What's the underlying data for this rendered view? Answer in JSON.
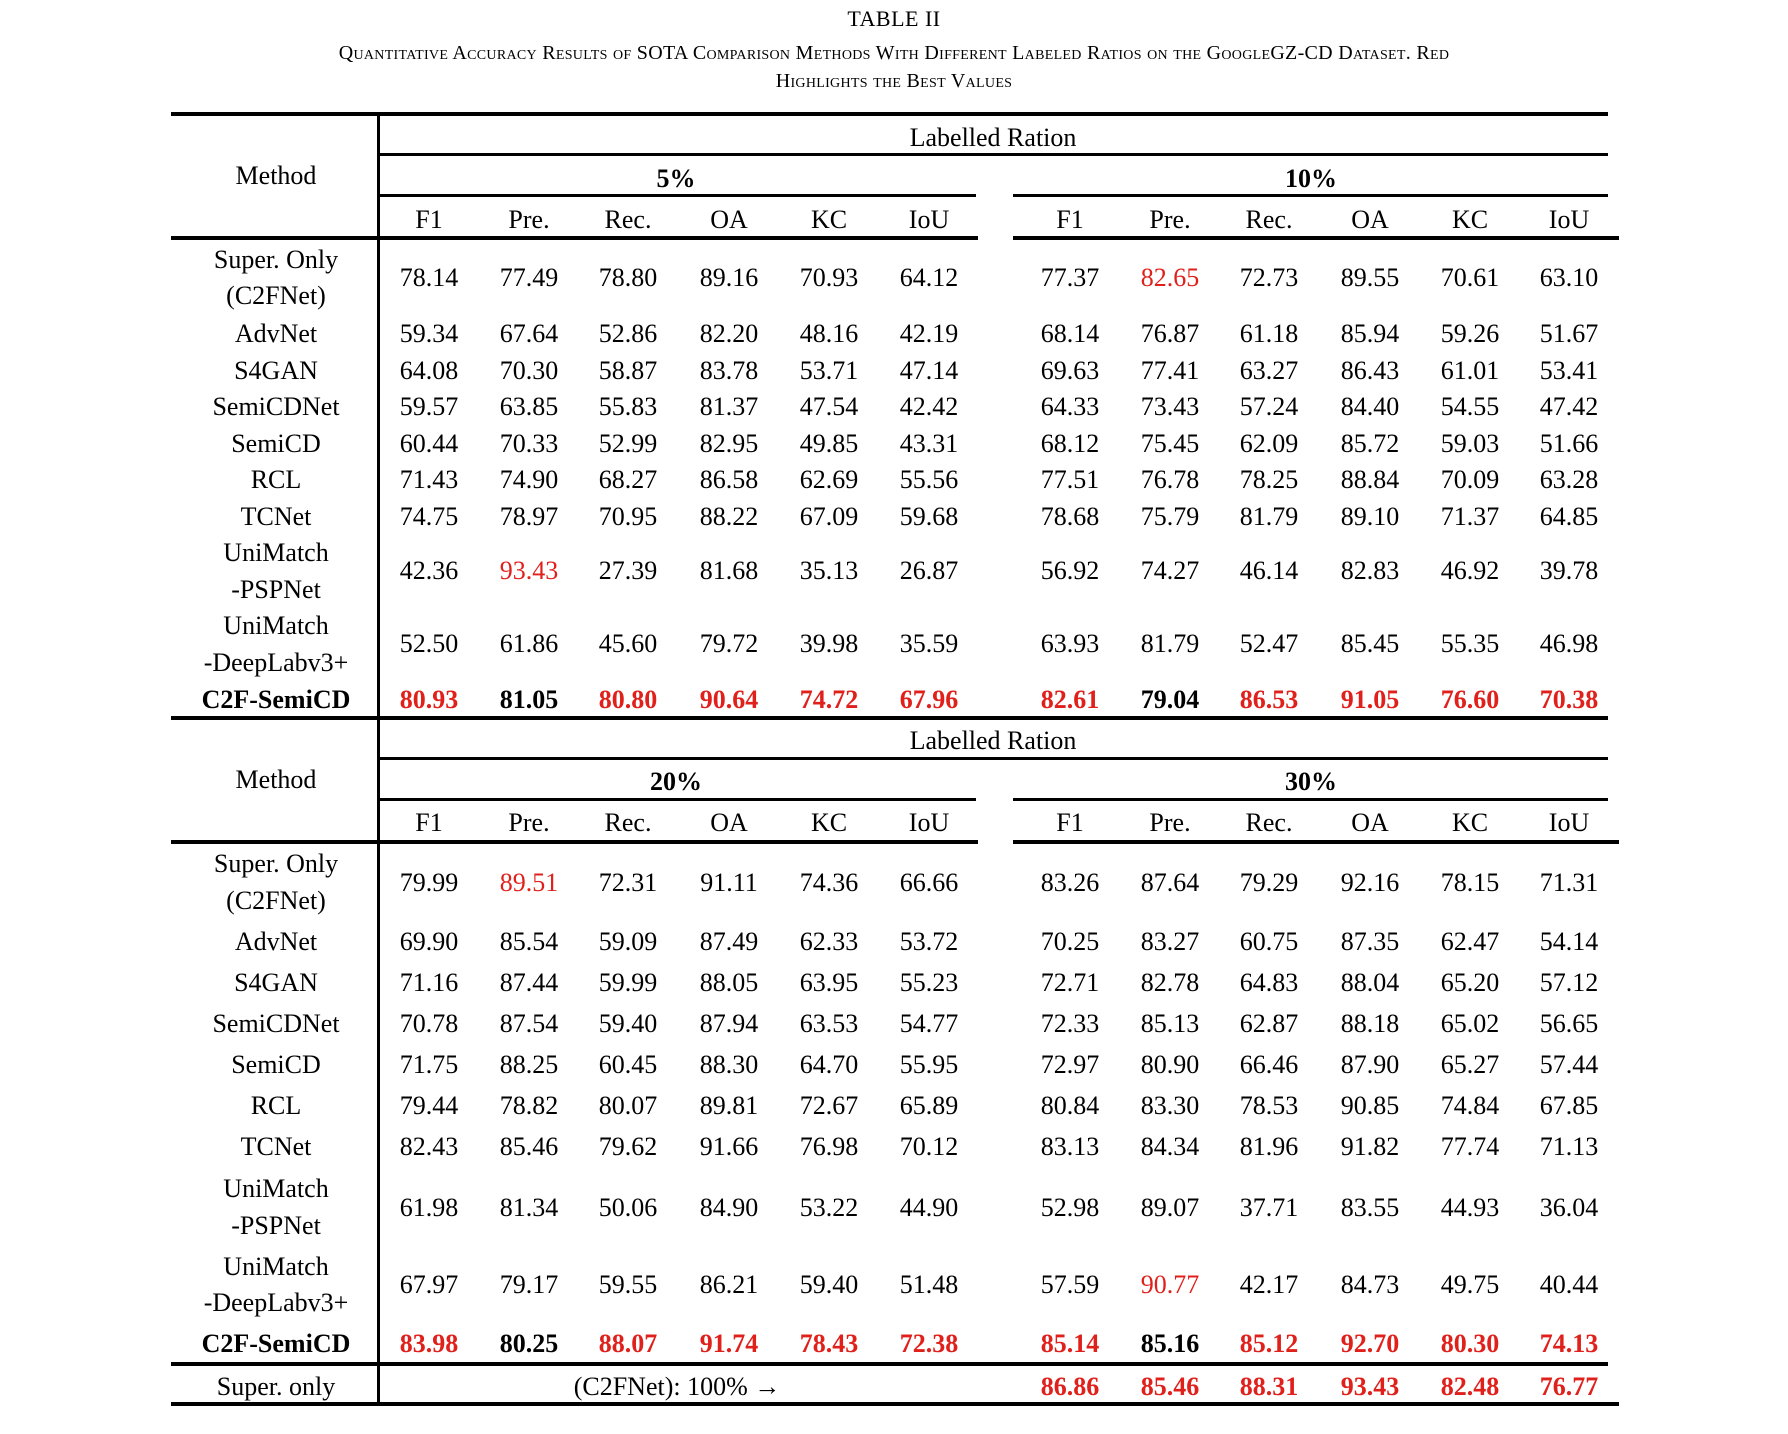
{
  "table_label": "TABLE II",
  "caption_line1": "Quantitative Accuracy Results of SOTA Comparison Methods With Different Labeled Ratios on the GoogleGZ-CD Dataset. Red",
  "caption_line2": "Highlights the Best Values",
  "colors": {
    "best": "#e0201b",
    "text": "#000000"
  },
  "method_header": "Method",
  "labelled_header": "Labelled Ration",
  "metrics": [
    "F1",
    "Pre.",
    "Rec.",
    "OA",
    "KC",
    "IoU"
  ],
  "blocks": [
    {
      "ratios": [
        "5%",
        "10%"
      ],
      "rows": [
        {
          "method": [
            "Super. Only",
            "(C2FNet)"
          ],
          "values": [
            "78.14",
            "77.49",
            "78.80",
            "89.16",
            "70.93",
            "64.12",
            "77.37",
            "82.65",
            "72.73",
            "89.55",
            "70.61",
            "63.10"
          ],
          "red": [
            7
          ]
        },
        {
          "method": [
            "AdvNet"
          ],
          "values": [
            "59.34",
            "67.64",
            "52.86",
            "82.20",
            "48.16",
            "42.19",
            "68.14",
            "76.87",
            "61.18",
            "85.94",
            "59.26",
            "51.67"
          ],
          "red": []
        },
        {
          "method": [
            "S4GAN"
          ],
          "values": [
            "64.08",
            "70.30",
            "58.87",
            "83.78",
            "53.71",
            "47.14",
            "69.63",
            "77.41",
            "63.27",
            "86.43",
            "61.01",
            "53.41"
          ],
          "red": []
        },
        {
          "method": [
            "SemiCDNet"
          ],
          "values": [
            "59.57",
            "63.85",
            "55.83",
            "81.37",
            "47.54",
            "42.42",
            "64.33",
            "73.43",
            "57.24",
            "84.40",
            "54.55",
            "47.42"
          ],
          "red": []
        },
        {
          "method": [
            "SemiCD"
          ],
          "values": [
            "60.44",
            "70.33",
            "52.99",
            "82.95",
            "49.85",
            "43.31",
            "68.12",
            "75.45",
            "62.09",
            "85.72",
            "59.03",
            "51.66"
          ],
          "red": []
        },
        {
          "method": [
            "RCL"
          ],
          "values": [
            "71.43",
            "74.90",
            "68.27",
            "86.58",
            "62.69",
            "55.56",
            "77.51",
            "76.78",
            "78.25",
            "88.84",
            "70.09",
            "63.28"
          ],
          "red": []
        },
        {
          "method": [
            "TCNet"
          ],
          "values": [
            "74.75",
            "78.97",
            "70.95",
            "88.22",
            "67.09",
            "59.68",
            "78.68",
            "75.79",
            "81.79",
            "89.10",
            "71.37",
            "64.85"
          ],
          "red": []
        },
        {
          "method": [
            "UniMatch",
            "-PSPNet"
          ],
          "values": [
            "42.36",
            "93.43",
            "27.39",
            "81.68",
            "35.13",
            "26.87",
            "56.92",
            "74.27",
            "46.14",
            "82.83",
            "46.92",
            "39.78"
          ],
          "red": [
            1
          ]
        },
        {
          "method": [
            "UniMatch",
            "-DeepLabv3+"
          ],
          "values": [
            "52.50",
            "61.86",
            "45.60",
            "79.72",
            "39.98",
            "35.59",
            "63.93",
            "81.79",
            "52.47",
            "85.45",
            "55.35",
            "46.98"
          ],
          "red": []
        },
        {
          "method": [
            "C2F-SemiCD"
          ],
          "bold": true,
          "values": [
            "80.93",
            "81.05",
            "80.80",
            "90.64",
            "74.72",
            "67.96",
            "82.61",
            "79.04",
            "86.53",
            "91.05",
            "76.60",
            "70.38"
          ],
          "red": [
            0,
            2,
            3,
            4,
            5,
            6,
            8,
            9,
            10,
            11
          ]
        }
      ]
    },
    {
      "ratios": [
        "20%",
        "30%"
      ],
      "rows": [
        {
          "method": [
            "Super. Only",
            "(C2FNet)"
          ],
          "values": [
            "79.99",
            "89.51",
            "72.31",
            "91.11",
            "74.36",
            "66.66",
            "83.26",
            "87.64",
            "79.29",
            "92.16",
            "78.15",
            "71.31"
          ],
          "red": [
            1
          ]
        },
        {
          "method": [
            "AdvNet"
          ],
          "values": [
            "69.90",
            "85.54",
            "59.09",
            "87.49",
            "62.33",
            "53.72",
            "70.25",
            "83.27",
            "60.75",
            "87.35",
            "62.47",
            "54.14"
          ],
          "red": []
        },
        {
          "method": [
            "S4GAN"
          ],
          "values": [
            "71.16",
            "87.44",
            "59.99",
            "88.05",
            "63.95",
            "55.23",
            "72.71",
            "82.78",
            "64.83",
            "88.04",
            "65.20",
            "57.12"
          ],
          "red": []
        },
        {
          "method": [
            "SemiCDNet"
          ],
          "values": [
            "70.78",
            "87.54",
            "59.40",
            "87.94",
            "63.53",
            "54.77",
            "72.33",
            "85.13",
            "62.87",
            "88.18",
            "65.02",
            "56.65"
          ],
          "red": []
        },
        {
          "method": [
            "SemiCD"
          ],
          "values": [
            "71.75",
            "88.25",
            "60.45",
            "88.30",
            "64.70",
            "55.95",
            "72.97",
            "80.90",
            "66.46",
            "87.90",
            "65.27",
            "57.44"
          ],
          "red": []
        },
        {
          "method": [
            "RCL"
          ],
          "values": [
            "79.44",
            "78.82",
            "80.07",
            "89.81",
            "72.67",
            "65.89",
            "80.84",
            "83.30",
            "78.53",
            "90.85",
            "74.84",
            "67.85"
          ],
          "red": []
        },
        {
          "method": [
            "TCNet"
          ],
          "values": [
            "82.43",
            "85.46",
            "79.62",
            "91.66",
            "76.98",
            "70.12",
            "83.13",
            "84.34",
            "81.96",
            "91.82",
            "77.74",
            "71.13"
          ],
          "red": []
        },
        {
          "method": [
            "UniMatch",
            "-PSPNet"
          ],
          "values": [
            "61.98",
            "81.34",
            "50.06",
            "84.90",
            "53.22",
            "44.90",
            "52.98",
            "89.07",
            "37.71",
            "83.55",
            "44.93",
            "36.04"
          ],
          "red": []
        },
        {
          "method": [
            "UniMatch",
            "-DeepLabv3+"
          ],
          "values": [
            "67.97",
            "79.17",
            "59.55",
            "86.21",
            "59.40",
            "51.48",
            "57.59",
            "90.77",
            "42.17",
            "84.73",
            "49.75",
            "40.44"
          ],
          "red": [
            7
          ]
        },
        {
          "method": [
            "C2F-SemiCD"
          ],
          "bold": true,
          "values": [
            "83.98",
            "80.25",
            "88.07",
            "91.74",
            "78.43",
            "72.38",
            "85.14",
            "85.16",
            "85.12",
            "92.70",
            "80.30",
            "74.13"
          ],
          "red": [
            0,
            2,
            3,
            4,
            5,
            6,
            8,
            9,
            10,
            11
          ]
        }
      ]
    }
  ],
  "footer": {
    "method": "Super. only",
    "note": "(C2FNet): 100% →",
    "values": [
      "86.86",
      "85.46",
      "88.31",
      "93.43",
      "82.48",
      "76.77"
    ],
    "red": [
      0,
      1,
      2,
      3,
      4,
      5
    ]
  }
}
